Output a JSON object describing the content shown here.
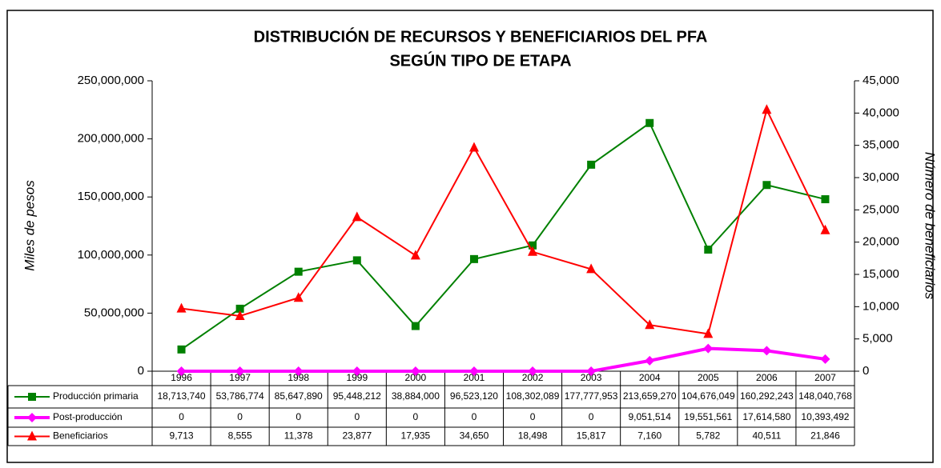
{
  "chart_data": {
    "type": "line",
    "title": [
      "DISTRIBUCIÓN DE RECURSOS Y BENEFICIARIOS DEL PFA",
      "SEGÚN TIPO DE ETAPA"
    ],
    "ylabel": "Miles de pesos",
    "y2label": "Número de beneficiarios",
    "categories": [
      "1996",
      "1997",
      "1998",
      "1999",
      "2000",
      "2001",
      "2002",
      "2003",
      "2004",
      "2005",
      "2006",
      "2007"
    ],
    "ylim": [
      0,
      250000000
    ],
    "yticks": [
      0,
      {
        "value": 50000000,
        "label": "50,000,000"
      },
      {
        "value": 100000000,
        "label": "100,000,000"
      },
      {
        "value": 150000000,
        "label": "150,000,000"
      },
      {
        "value": 200000000,
        "label": "200,000,000"
      },
      {
        "value": 250000000,
        "label": "250,000,000"
      }
    ],
    "y2lim": [
      0,
      45000
    ],
    "y2ticks": [
      0,
      {
        "value": 5000,
        "label": "5,000"
      },
      {
        "value": 10000,
        "label": "10,000"
      },
      {
        "value": 15000,
        "label": "15,000"
      },
      {
        "value": 20000,
        "label": "20,000"
      },
      {
        "value": 25000,
        "label": "25,000"
      },
      {
        "value": 30000,
        "label": "30,000"
      },
      {
        "value": 35000,
        "label": "35,000"
      },
      {
        "value": 40000,
        "label": "40,000"
      },
      {
        "value": 45000,
        "label": "45,000"
      }
    ],
    "series": [
      {
        "name": "Producción primaria",
        "color": "#008000",
        "marker": "square",
        "values": [
          18713740,
          53786774,
          85647890,
          95448212,
          38884000,
          96523120,
          108302089,
          177777953,
          213659270,
          104676049,
          160292243,
          148040768
        ],
        "value_labels": [
          "18,713,740",
          "53,786,774",
          "85,647,890",
          "95,448,212",
          "38,884,000",
          "96,523,120",
          "108,302,089",
          "177,777,953",
          "213,659,270",
          "104,676,049",
          "160,292,243",
          "148,040,768"
        ]
      },
      {
        "name": "Post-producción",
        "color": "#ff00ff",
        "marker": "diamond",
        "values": [
          0,
          0,
          0,
          0,
          0,
          0,
          0,
          0,
          9051514,
          19551561,
          17614580,
          10393492
        ],
        "value_labels": [
          "0",
          "0",
          "0",
          "0",
          "0",
          "0",
          "0",
          "0",
          "9,051,514",
          "19,551,561",
          "17,614,580",
          "10,393,492"
        ]
      },
      {
        "name": "Beneficiarios",
        "color": "#ff0000",
        "marker": "triangle",
        "axis": "y2",
        "values": [
          9713,
          8555,
          11378,
          23877,
          17935,
          34650,
          18498,
          15817,
          7160,
          5782,
          40511,
          21846
        ],
        "value_labels": [
          "9,713",
          "8,555",
          "11,378",
          "23,877",
          "17,935",
          "34,650",
          "18,498",
          "15,817",
          "7,160",
          "5,782",
          "40,511",
          "21,846"
        ]
      }
    ]
  }
}
